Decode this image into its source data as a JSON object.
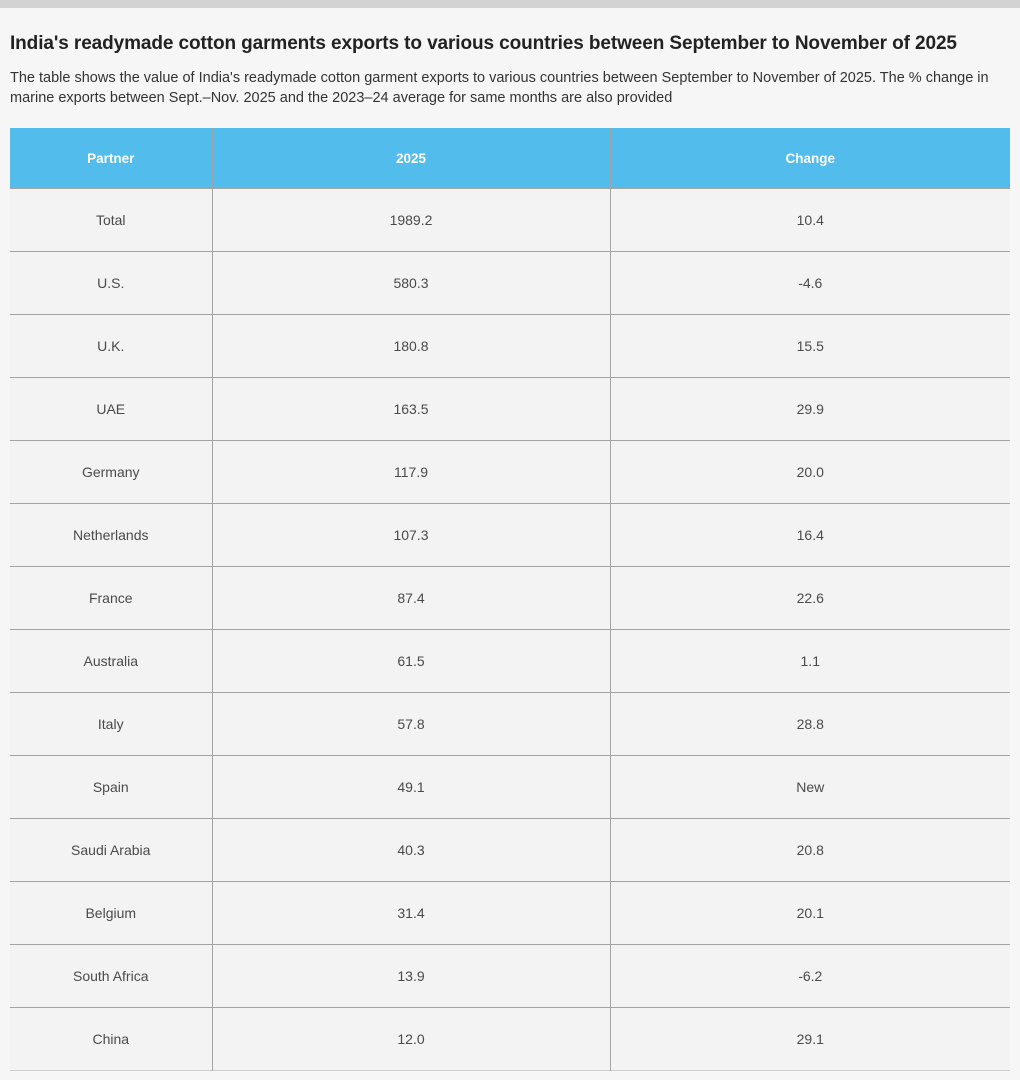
{
  "page": {
    "title": "India's readymade cotton garments exports to various countries between September to November of 2025",
    "description": "The table shows the value of India's readymade cotton garment exports to various countries between September to November of 2025. The % change in marine exports between Sept.–Nov. 2025 and the 2023–24 average for same months are also provided"
  },
  "colors": {
    "header_bg": "#52bcec",
    "header_text": "#ffffff",
    "row_bg": "#f3f3f3",
    "page_bg": "#f6f6f6",
    "top_bar": "#d3d3d3",
    "grid_line": "#a3a3a3"
  },
  "chart_data": {
    "type": "table",
    "title": "India's readymade cotton garments exports to various countries between September to November of 2025",
    "columns": [
      "Partner",
      "2025",
      "Change"
    ],
    "rows": [
      [
        "Total",
        "1989.2",
        "10.4"
      ],
      [
        "U.S.",
        "580.3",
        "-4.6"
      ],
      [
        "U.K.",
        "180.8",
        "15.5"
      ],
      [
        "UAE",
        "163.5",
        "29.9"
      ],
      [
        "Germany",
        "117.9",
        "20.0"
      ],
      [
        "Netherlands",
        "107.3",
        "16.4"
      ],
      [
        "France",
        "87.4",
        "22.6"
      ],
      [
        "Australia",
        "61.5",
        "1.1"
      ],
      [
        "Italy",
        "57.8",
        "28.8"
      ],
      [
        "Spain",
        "49.1",
        "New"
      ],
      [
        "Saudi Arabia",
        "40.3",
        "20.8"
      ],
      [
        "Belgium",
        "31.4",
        "20.1"
      ],
      [
        "South Africa",
        "13.9",
        "-6.2"
      ],
      [
        "China",
        "12.0",
        "29.1"
      ]
    ]
  }
}
